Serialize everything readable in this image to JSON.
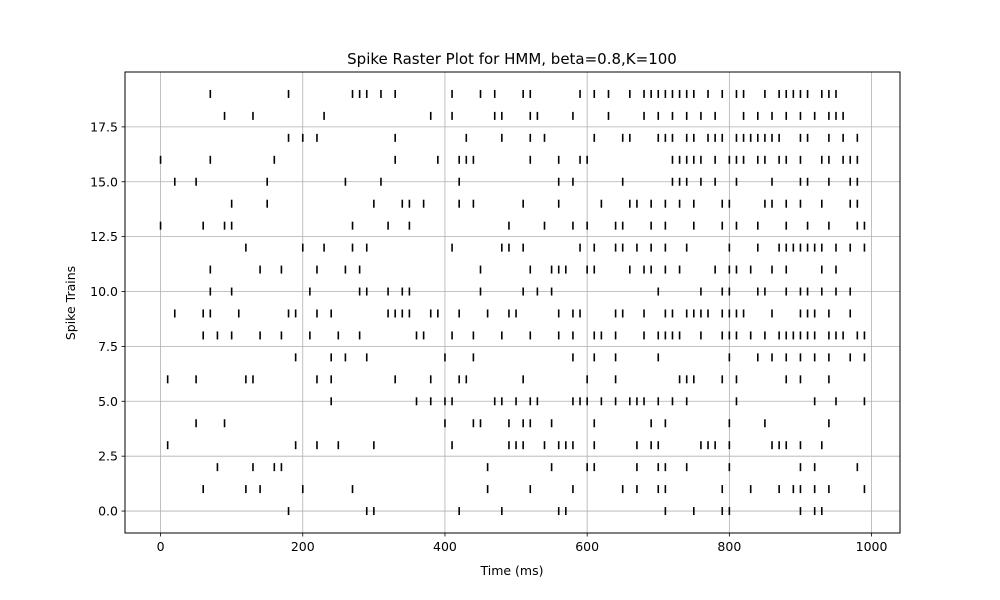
{
  "chart_data": {
    "type": "scatter",
    "marker": "vertical-line",
    "title": "Spike Raster Plot for HMM, beta=0.8,K=100",
    "xlabel": "Time (ms)",
    "ylabel": "Spike Trains",
    "xlim": [
      -50,
      1040
    ],
    "ylim": [
      -1,
      20
    ],
    "x_ticks": [
      "0",
      "200",
      "400",
      "600",
      "800",
      "1000"
    ],
    "y_ticks": [
      "0.0",
      "2.5",
      "5.0",
      "7.5",
      "10.0",
      "12.5",
      "15.0",
      "17.5"
    ],
    "grid": true,
    "spike_color": "#000000",
    "trains": [
      {
        "train": 0,
        "times": [
          180,
          290,
          300,
          420,
          480,
          560,
          570,
          710,
          750,
          790,
          800,
          900,
          920,
          930
        ]
      },
      {
        "train": 1,
        "times": [
          60,
          120,
          140,
          200,
          270,
          460,
          520,
          580,
          650,
          670,
          700,
          710,
          790,
          830,
          870,
          890,
          900,
          920,
          940,
          990
        ]
      },
      {
        "train": 2,
        "times": [
          80,
          130,
          160,
          170,
          460,
          550,
          600,
          610,
          670,
          700,
          710,
          740,
          800,
          900,
          920,
          980
        ]
      },
      {
        "train": 3,
        "times": [
          10,
          190,
          220,
          250,
          300,
          410,
          490,
          500,
          510,
          540,
          560,
          570,
          580,
          610,
          670,
          690,
          700,
          760,
          770,
          780,
          800,
          860,
          870,
          880,
          900,
          930
        ]
      },
      {
        "train": 4,
        "times": [
          50,
          90,
          400,
          440,
          450,
          490,
          510,
          520,
          550,
          610,
          690,
          710,
          800,
          850,
          940
        ]
      },
      {
        "train": 5,
        "times": [
          240,
          360,
          380,
          400,
          410,
          470,
          480,
          500,
          520,
          530,
          580,
          590,
          600,
          620,
          640,
          660,
          670,
          680,
          700,
          720,
          740,
          810,
          920,
          950,
          990
        ]
      },
      {
        "train": 6,
        "times": [
          10,
          50,
          120,
          130,
          220,
          240,
          330,
          380,
          420,
          430,
          510,
          600,
          640,
          730,
          740,
          750,
          790,
          810,
          880,
          900,
          940
        ]
      },
      {
        "train": 7,
        "times": [
          190,
          240,
          260,
          290,
          400,
          440,
          580,
          610,
          640,
          700,
          800,
          840,
          860,
          880,
          900,
          920,
          940,
          970,
          990
        ]
      },
      {
        "train": 8,
        "times": [
          60,
          80,
          100,
          140,
          170,
          210,
          250,
          280,
          360,
          370,
          410,
          440,
          480,
          520,
          560,
          580,
          610,
          620,
          640,
          680,
          700,
          710,
          720,
          730,
          760,
          790,
          800,
          810,
          830,
          850,
          870,
          880,
          890,
          900,
          910,
          920,
          940,
          950,
          960,
          980,
          990
        ]
      },
      {
        "train": 9,
        "times": [
          20,
          60,
          70,
          110,
          180,
          190,
          220,
          240,
          320,
          330,
          340,
          350,
          380,
          390,
          420,
          460,
          490,
          500,
          560,
          580,
          590,
          640,
          650,
          680,
          710,
          720,
          740,
          750,
          760,
          770,
          790,
          800,
          810,
          820,
          860,
          900,
          910,
          920,
          940,
          970
        ]
      },
      {
        "train": 10,
        "times": [
          70,
          100,
          210,
          280,
          290,
          320,
          340,
          350,
          450,
          510,
          530,
          550,
          700,
          760,
          790,
          800,
          840,
          850,
          880,
          900,
          910,
          930,
          950,
          970
        ]
      },
      {
        "train": 11,
        "times": [
          70,
          140,
          170,
          220,
          260,
          280,
          450,
          520,
          550,
          560,
          570,
          600,
          610,
          660,
          680,
          690,
          710,
          730,
          780,
          800,
          810,
          830,
          860,
          880,
          930,
          950
        ]
      },
      {
        "train": 12,
        "times": [
          120,
          200,
          230,
          270,
          290,
          410,
          480,
          490,
          510,
          590,
          610,
          640,
          650,
          670,
          690,
          710,
          740,
          800,
          840,
          870,
          880,
          890,
          900,
          910,
          920,
          930,
          950,
          970,
          990
        ]
      },
      {
        "train": 13,
        "times": [
          0,
          60,
          90,
          100,
          270,
          320,
          350,
          490,
          540,
          580,
          600,
          640,
          650,
          690,
          710,
          750,
          790,
          810,
          840,
          880,
          910,
          940,
          980,
          990
        ]
      },
      {
        "train": 14,
        "times": [
          100,
          150,
          300,
          340,
          350,
          370,
          420,
          440,
          510,
          560,
          620,
          660,
          670,
          690,
          710,
          730,
          750,
          790,
          800,
          850,
          860,
          880,
          900,
          930,
          970,
          980
        ]
      },
      {
        "train": 15,
        "times": [
          20,
          50,
          150,
          260,
          310,
          420,
          560,
          580,
          650,
          720,
          730,
          740,
          760,
          780,
          810,
          860,
          900,
          910,
          940,
          970,
          980
        ]
      },
      {
        "train": 16,
        "times": [
          0,
          70,
          160,
          330,
          390,
          420,
          430,
          440,
          520,
          560,
          590,
          600,
          720,
          730,
          740,
          750,
          760,
          780,
          800,
          810,
          820,
          840,
          850,
          870,
          880,
          900,
          930,
          940,
          960,
          970,
          980
        ]
      },
      {
        "train": 17,
        "times": [
          180,
          200,
          220,
          330,
          430,
          480,
          520,
          540,
          610,
          650,
          660,
          700,
          710,
          720,
          740,
          750,
          770,
          780,
          790,
          810,
          820,
          830,
          840,
          850,
          860,
          870,
          900,
          910,
          940,
          960,
          980
        ]
      },
      {
        "train": 18,
        "times": [
          90,
          130,
          230,
          380,
          410,
          470,
          480,
          520,
          530,
          580,
          630,
          680,
          700,
          720,
          740,
          760,
          780,
          820,
          840,
          860,
          880,
          900,
          920,
          940,
          950,
          960
        ]
      },
      {
        "train": 19,
        "times": [
          70,
          180,
          270,
          280,
          290,
          310,
          330,
          410,
          450,
          470,
          510,
          520,
          590,
          610,
          630,
          660,
          680,
          690,
          700,
          710,
          720,
          730,
          740,
          750,
          770,
          790,
          810,
          820,
          850,
          870,
          880,
          890,
          900,
          910,
          930,
          940,
          950
        ]
      }
    ]
  }
}
